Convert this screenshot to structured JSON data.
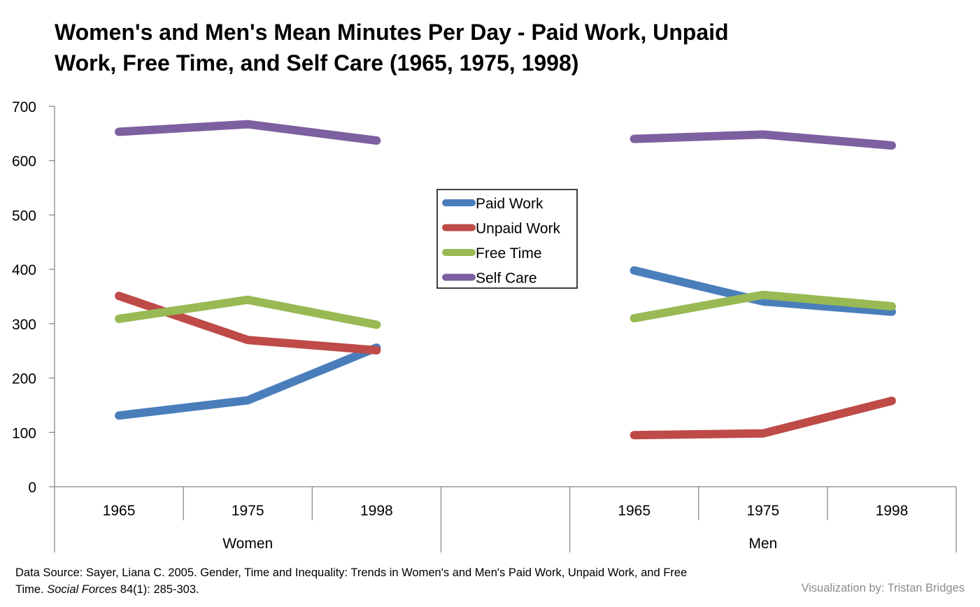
{
  "chart_data": {
    "type": "line",
    "title_line1": "Women's and Men's Mean Minutes Per Day - Paid Work, Unpaid",
    "title_line2": "Work, Free Time, and Self Care (1965, 1975, 1998)",
    "xlabel": "",
    "ylabel": "",
    "ylim": [
      0,
      700
    ],
    "yticks": [
      "0",
      "100",
      "200",
      "300",
      "400",
      "500",
      "600",
      "700"
    ],
    "groups": [
      {
        "name": "Women",
        "categories": [
          "1965",
          "1975",
          "1998"
        ]
      },
      {
        "name": "Men",
        "categories": [
          "1965",
          "1975",
          "1998"
        ]
      }
    ],
    "legend_position": "center-top",
    "series": [
      {
        "name": "Paid Work",
        "color": "#4a7ebb",
        "women": [
          131,
          159,
          256
        ],
        "men": [
          398,
          341,
          322
        ]
      },
      {
        "name": "Unpaid Work",
        "color": "#be4b48",
        "women": [
          351,
          270,
          251
        ],
        "men": [
          95,
          98,
          158
        ]
      },
      {
        "name": "Free Time",
        "color": "#98b954",
        "women": [
          309,
          344,
          298
        ],
        "men": [
          310,
          353,
          332
        ]
      },
      {
        "name": "Self Care",
        "color": "#7d60a0",
        "women": [
          653,
          667,
          637
        ],
        "men": [
          640,
          648,
          628
        ]
      }
    ],
    "source_prefix": "Data Source: Sayer, Liana C. 2005. Gender, Time and Inequality: Trends in Women's and Men's Paid Work, Unpaid Work, and Free Time. ",
    "source_journal": "Social Forces",
    "source_suffix": " 84(1): 285-303.",
    "credit": "Visualization by: Tristan Bridges"
  }
}
